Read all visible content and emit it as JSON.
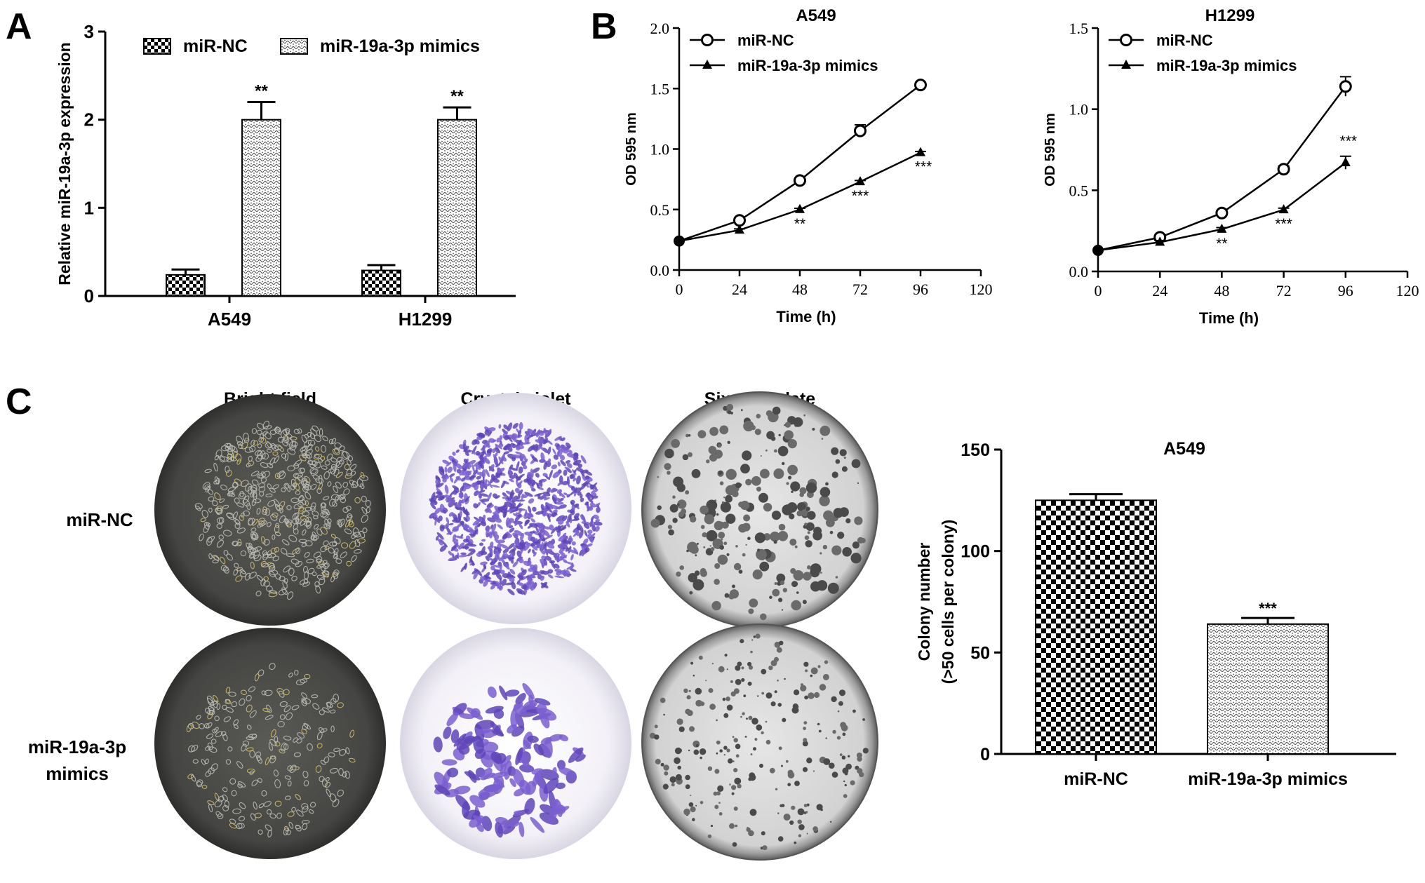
{
  "panel_labels": {
    "a": "A",
    "b": "B",
    "c": "C"
  },
  "micro": {
    "col_titles": [
      "Bright field",
      "Crystal violet",
      "Six-well plate"
    ],
    "row_labels": {
      "nc": "miR-NC",
      "mimics_line1": "miR-19a-3p",
      "mimics_line2": "mimics"
    }
  },
  "colors": {
    "ink": "#000000",
    "bright_field_bg": "#4a4a48",
    "crystal_violet": "#6a4fc2",
    "plate_bg": "#d9d9d9"
  },
  "chart_data": [
    {
      "id": "A",
      "type": "bar",
      "title": "",
      "xlabel": "",
      "ylabel": "Relative miR-19a-3p expression",
      "ylim": [
        0,
        3
      ],
      "yticks": [
        0,
        1,
        2,
        3
      ],
      "categories": [
        "A549",
        "H1299"
      ],
      "series": [
        {
          "name": "miR-NC",
          "values": [
            0.24,
            0.29
          ],
          "errors": [
            0.06,
            0.06
          ],
          "sig": [
            "",
            ""
          ]
        },
        {
          "name": "miR-19a-3p  mimics",
          "values": [
            2.0,
            2.0
          ],
          "errors": [
            0.2,
            0.14
          ],
          "sig": [
            "**",
            "**"
          ]
        }
      ],
      "legend": "top"
    },
    {
      "id": "B1",
      "type": "line",
      "title": "A549",
      "xlabel": "Time (h)",
      "ylabel": "OD 595 nm",
      "xlim": [
        0,
        120
      ],
      "xticks": [
        0,
        24,
        48,
        72,
        96,
        120
      ],
      "ylim": [
        0,
        2.0
      ],
      "yticks": [
        "0.0",
        "0.5",
        "1.0",
        "1.5",
        "2.0"
      ],
      "x": [
        0,
        24,
        48,
        72,
        96
      ],
      "series": [
        {
          "name": "miR-NC",
          "marker": "circle",
          "values": [
            0.24,
            0.41,
            0.74,
            1.15,
            1.53
          ],
          "errors": [
            0,
            0.02,
            0.02,
            0.05,
            0.02
          ],
          "sig": [
            "",
            "",
            "",
            "",
            ""
          ]
        },
        {
          "name": "miR-19a-3p mimics",
          "marker": "triangle",
          "values": [
            0.24,
            0.33,
            0.5,
            0.73,
            0.97
          ],
          "errors": [
            0,
            0.01,
            0.01,
            0.01,
            0.01
          ],
          "sig": [
            "",
            "",
            "**",
            "***",
            "***"
          ]
        }
      ],
      "legend": "top-left"
    },
    {
      "id": "B2",
      "type": "line",
      "title": "H1299",
      "xlabel": "Time (h)",
      "ylabel": "OD 595 nm",
      "xlim": [
        0,
        120
      ],
      "xticks": [
        0,
        24,
        48,
        72,
        96,
        120
      ],
      "ylim": [
        0,
        1.5
      ],
      "yticks": [
        "0.0",
        "0.5",
        "1.0",
        "1.5"
      ],
      "x": [
        0,
        24,
        48,
        72,
        96
      ],
      "series": [
        {
          "name": "miR-NC",
          "marker": "circle",
          "values": [
            0.13,
            0.21,
            0.36,
            0.63,
            1.14
          ],
          "errors": [
            0,
            0.01,
            0.01,
            0.02,
            0.06
          ],
          "sig": [
            "",
            "",
            "",
            "",
            ""
          ]
        },
        {
          "name": "miR-19a-3p mimics",
          "marker": "triangle",
          "values": [
            0.13,
            0.18,
            0.26,
            0.38,
            0.67
          ],
          "errors": [
            0,
            0.01,
            0.01,
            0.01,
            0.04
          ],
          "sig": [
            "",
            "",
            "**",
            "***",
            "***"
          ]
        }
      ],
      "legend": "top-left"
    },
    {
      "id": "C",
      "type": "bar",
      "title": "A549",
      "xlabel": "",
      "ylabel_lines": [
        "Colony number",
        "(>50 cells per colony)"
      ],
      "ylim": [
        0,
        150
      ],
      "yticks": [
        0,
        50,
        100,
        150
      ],
      "categories": [
        "miR-NC",
        "miR-19a-3p mimics"
      ],
      "values": [
        125,
        64
      ],
      "errors": [
        3,
        3
      ],
      "sig": [
        "",
        "***"
      ],
      "legend": "none"
    }
  ]
}
